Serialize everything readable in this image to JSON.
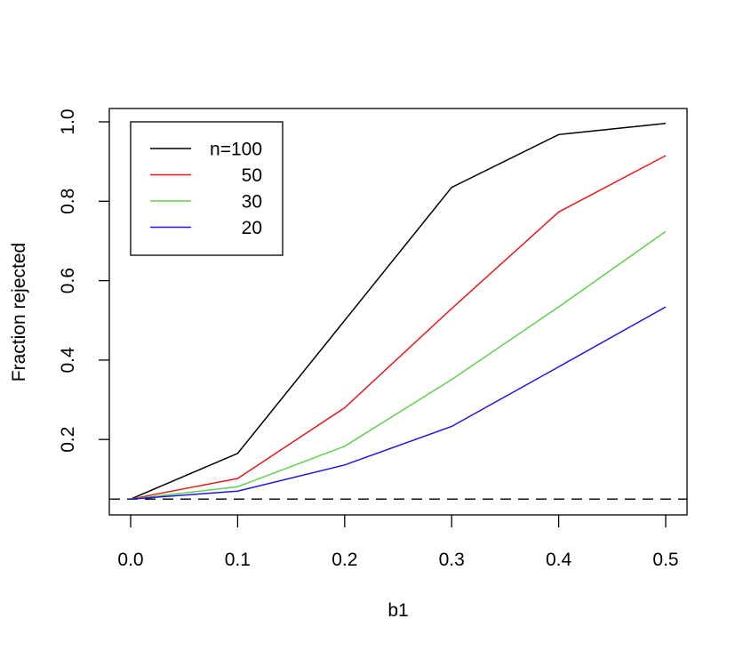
{
  "chart_data": {
    "type": "line",
    "title": "",
    "xlabel": "b1",
    "ylabel": "Fraction rejected",
    "x": [
      0.0,
      0.1,
      0.2,
      0.3,
      0.4,
      0.5
    ],
    "x_tick_labels": [
      "0.0",
      "0.1",
      "0.2",
      "0.3",
      "0.4",
      "0.5"
    ],
    "y_ticks": [
      0.2,
      0.4,
      0.6,
      0.8,
      1.0
    ],
    "y_tick_labels": [
      "0.2",
      "0.4",
      "0.6",
      "0.8",
      "1.0"
    ],
    "xlim": [
      -0.02,
      0.52
    ],
    "ylim": [
      0.01,
      1.03
    ],
    "grid": false,
    "legend_position": "topleft",
    "series": [
      {
        "name": "n=100",
        "legend_label": "n=100",
        "color": "#000000",
        "values": [
          0.05,
          0.165,
          0.5,
          0.835,
          0.968,
          0.996
        ]
      },
      {
        "name": "50",
        "legend_label": "50",
        "color": "#e41a1c",
        "values": [
          0.05,
          0.102,
          0.28,
          0.53,
          0.773,
          0.915
        ]
      },
      {
        "name": "30",
        "legend_label": "30",
        "color": "#61d04f",
        "values": [
          0.05,
          0.081,
          0.183,
          0.351,
          0.534,
          0.724
        ]
      },
      {
        "name": "20",
        "legend_label": "20",
        "color": "#2214e6",
        "values": [
          0.05,
          0.07,
          0.136,
          0.233,
          0.383,
          0.534
        ]
      }
    ],
    "reference_line": {
      "y": 0.05,
      "style": "dashed",
      "color": "#000000"
    }
  }
}
